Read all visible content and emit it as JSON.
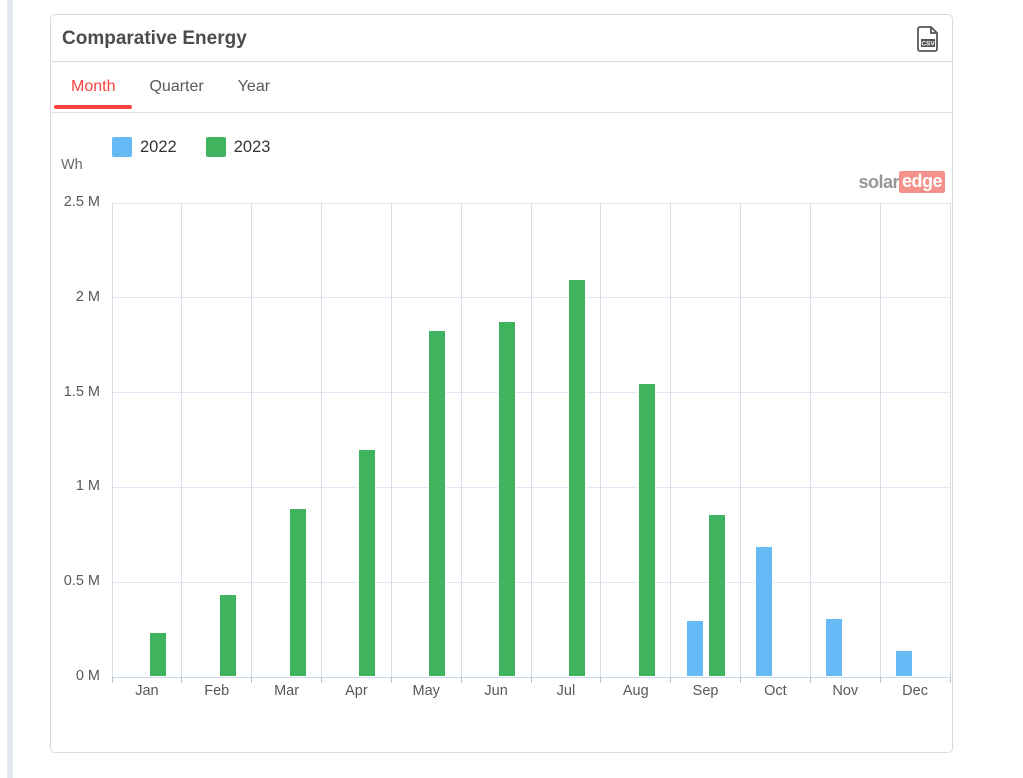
{
  "page": {
    "background": "#ffffff",
    "scrollbar_color": "#e4e8f2"
  },
  "header": {
    "title": "Comparative Energy",
    "csv_label": "CSV"
  },
  "tabs": {
    "active_color": "#fa423e",
    "items": [
      {
        "label": "Month",
        "active": true
      },
      {
        "label": "Quarter",
        "active": false
      },
      {
        "label": "Year",
        "active": false
      }
    ]
  },
  "watermark": {
    "solar": "solar",
    "edge": "edge",
    "edge_bg": "#ee372c"
  },
  "chart_data": {
    "type": "bar",
    "title": "Comparative Energy",
    "ylabel": "Wh",
    "unit": "M Wh",
    "categories": [
      "Jan",
      "Feb",
      "Mar",
      "Apr",
      "May",
      "Jun",
      "Jul",
      "Aug",
      "Sep",
      "Oct",
      "Nov",
      "Dec"
    ],
    "series": [
      {
        "name": "2022",
        "color": "#66bbf7",
        "values": [
          null,
          null,
          null,
          null,
          null,
          null,
          null,
          null,
          0.3,
          0.69,
          0.31,
          0.14
        ]
      },
      {
        "name": "2023",
        "color": "#40b35e",
        "values": [
          0.24,
          0.44,
          0.89,
          1.2,
          1.83,
          1.88,
          2.1,
          1.55,
          0.86,
          null,
          null,
          null
        ]
      }
    ],
    "ylim": [
      0,
      2.5
    ],
    "ytick_step": 0.5,
    "ytick_labels": [
      "0 M",
      "0.5 M",
      "1 M",
      "1.5 M",
      "2 M",
      "2.5 M"
    ],
    "legend_position": "top-left",
    "grid": true
  }
}
